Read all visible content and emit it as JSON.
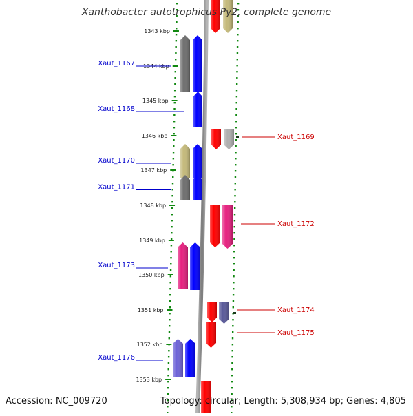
{
  "title": "Xanthobacter autotrophicus Py2, complete genome",
  "footer": {
    "accession": "Accession: NC_009720",
    "info": "Topology: circular; Length: 5,308,934 bp; Genes: 4,805"
  },
  "ticks": [
    "1343 kbp",
    "1344 kbp",
    "1345 kbp",
    "1346 kbp",
    "1347 kbp",
    "1348 kbp",
    "1349 kbp",
    "1350 kbp",
    "1351 kbp",
    "1352 kbp",
    "1353 kbp"
  ],
  "colors": {
    "forward_label": "#0000cc",
    "reverse_label": "#cc0000",
    "blue": "#0000ff",
    "red": "#ff0000",
    "gray": "#6e6e6e",
    "light_gray": "#b0b0b0",
    "olive": "#c4b97a",
    "magenta": "#e6207f",
    "slate": "#6e63d8",
    "navy": "#5a5a9a",
    "axis": "#888888",
    "dots": "#118811"
  },
  "genes": [
    {
      "label": "",
      "strand": "reverse",
      "color": "red"
    },
    {
      "label": "",
      "strand": "reverse",
      "color": "olive"
    },
    {
      "label": "Xaut_1167",
      "strand": "forward",
      "color": "gray"
    },
    {
      "label": "",
      "strand": "forward",
      "color": "blue"
    },
    {
      "label": "Xaut_1168",
      "strand": "forward",
      "color": "blue"
    },
    {
      "label": "Xaut_1169",
      "strand": "reverse",
      "color": "red"
    },
    {
      "label": "",
      "strand": "reverse",
      "color": "light_gray"
    },
    {
      "label": "Xaut_1170",
      "strand": "forward",
      "color": "olive"
    },
    {
      "label": "",
      "strand": "forward",
      "color": "blue"
    },
    {
      "label": "Xaut_1171",
      "strand": "forward",
      "color": "gray"
    },
    {
      "label": "",
      "strand": "forward",
      "color": "blue"
    },
    {
      "label": "Xaut_1172",
      "strand": "reverse",
      "color": "red"
    },
    {
      "label": "",
      "strand": "reverse",
      "color": "magenta"
    },
    {
      "label": "Xaut_1173",
      "strand": "forward",
      "color": "magenta"
    },
    {
      "label": "",
      "strand": "forward",
      "color": "blue"
    },
    {
      "label": "Xaut_1174",
      "strand": "reverse",
      "color": "red"
    },
    {
      "label": "",
      "strand": "reverse",
      "color": "navy"
    },
    {
      "label": "Xaut_1175",
      "strand": "reverse",
      "color": "red"
    },
    {
      "label": "Xaut_1176",
      "strand": "forward",
      "color": "slate"
    },
    {
      "label": "",
      "strand": "forward",
      "color": "blue"
    },
    {
      "label": "",
      "strand": "reverse",
      "color": "red"
    }
  ]
}
